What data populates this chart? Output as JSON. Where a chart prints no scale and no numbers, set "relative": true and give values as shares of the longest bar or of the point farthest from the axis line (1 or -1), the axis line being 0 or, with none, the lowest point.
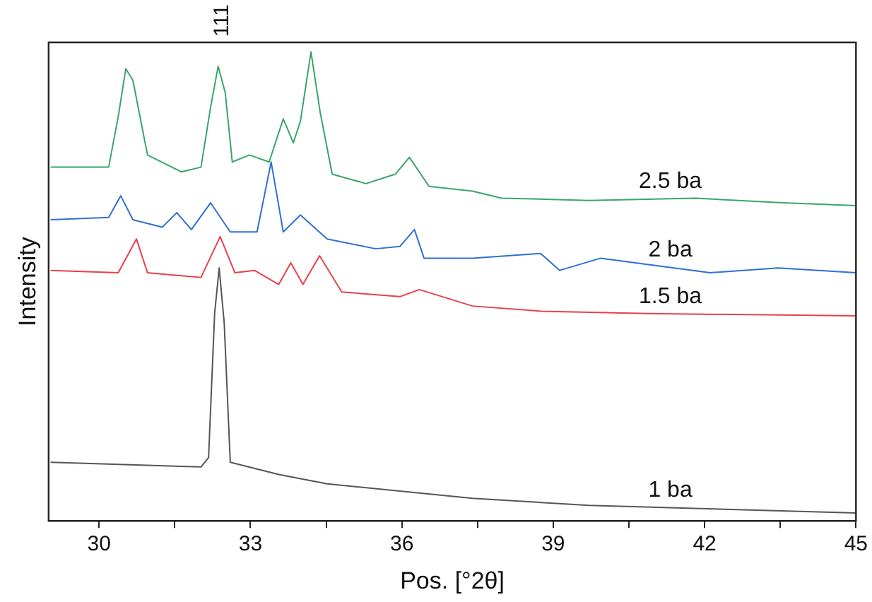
{
  "chart_data": {
    "type": "line",
    "relative": true,
    "xlabel": "Pos. [°2θ]",
    "ylabel": "Intensity",
    "xlim": [
      29,
      45
    ],
    "xticks": [
      30,
      {
        "value": 31.5,
        "label": null
      },
      33,
      {
        "value": 34.5,
        "label": null
      },
      36,
      {
        "value": 37.5,
        "label": null
      },
      39,
      {
        "value": 40.5,
        "label": null
      },
      42,
      {
        "value": 43.5,
        "label": null
      },
      45
    ],
    "grid": false,
    "legend": false,
    "marker": "none",
    "line_style": "solid",
    "annotations": [
      "111"
    ],
    "series": [
      {
        "name": "2.5 ba",
        "color": "#3aa56a",
        "x": [
          29.04,
          30.19,
          30.38,
          30.53,
          30.67,
          30.96,
          31.63,
          32.02,
          32.21,
          32.36,
          32.5,
          32.64,
          32.98,
          33.37,
          33.65,
          33.85,
          33.99,
          34.2,
          34.38,
          34.62,
          35.29,
          35.87,
          36.15,
          36.54,
          37.4,
          37.98,
          39.71,
          41.82,
          43.55,
          45
        ],
        "values": [
          0.754,
          0.754,
          0.862,
          0.964,
          0.939,
          0.78,
          0.744,
          0.754,
          0.882,
          0.969,
          0.913,
          0.765,
          0.78,
          0.765,
          0.857,
          0.806,
          0.852,
          1,
          0.872,
          0.739,
          0.719,
          0.739,
          0.775,
          0.713,
          0.703,
          0.688,
          0.683,
          0.688,
          0.678,
          0.672
        ]
      },
      {
        "name": "2 ba",
        "color": "#2f6fd8",
        "x": [
          29.04,
          30.19,
          30.43,
          30.67,
          31.25,
          31.54,
          31.83,
          32.21,
          32.6,
          33.13,
          33.41,
          33.65,
          33.99,
          34.52,
          35.48,
          35.96,
          36.25,
          36.44,
          37.4,
          38.75,
          39.13,
          39.94,
          42.11,
          43.46,
          45
        ],
        "values": [
          0.642,
          0.647,
          0.693,
          0.642,
          0.626,
          0.657,
          0.621,
          0.678,
          0.616,
          0.616,
          0.765,
          0.616,
          0.652,
          0.601,
          0.58,
          0.585,
          0.621,
          0.56,
          0.56,
          0.57,
          0.534,
          0.56,
          0.529,
          0.539,
          0.529
        ]
      },
      {
        "name": "1.5 ba",
        "color": "#e8404a",
        "x": [
          29.04,
          30.38,
          30.74,
          30.96,
          32.02,
          32.4,
          32.69,
          33.08,
          33.56,
          33.8,
          34.04,
          34.37,
          34.81,
          35.96,
          36.35,
          37.4,
          38.75,
          40.87,
          45
        ],
        "values": [
          0.534,
          0.529,
          0.601,
          0.529,
          0.519,
          0.606,
          0.529,
          0.534,
          0.504,
          0.55,
          0.504,
          0.565,
          0.488,
          0.478,
          0.493,
          0.458,
          0.447,
          0.442,
          0.437
        ]
      },
      {
        "name": "1 ba",
        "color": "#555555",
        "x": [
          29.04,
          32.02,
          32.17,
          32.29,
          32.38,
          32.48,
          32.6,
          33.56,
          34.52,
          37.4,
          39.71,
          45
        ],
        "values": [
          0.125,
          0.115,
          0.135,
          0.442,
          0.539,
          0.422,
          0.125,
          0.099,
          0.079,
          0.048,
          0.033,
          0.017
        ]
      }
    ]
  }
}
